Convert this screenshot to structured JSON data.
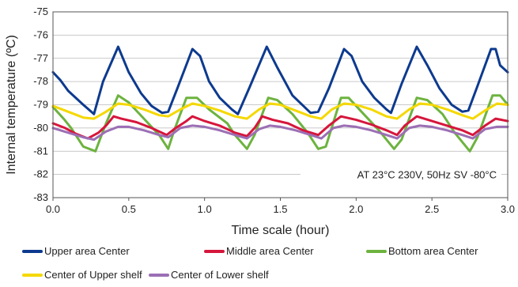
{
  "chart_data": {
    "type": "line",
    "title": "",
    "xlabel": "Time scale (hour)",
    "ylabel": "Internal temperature (ºC)",
    "xlim": [
      0,
      3
    ],
    "ylim": [
      -83,
      -75
    ],
    "xticks": [
      "0.0",
      "0.5",
      "1.0",
      "1.5",
      "2.0",
      "2.5",
      "3.0"
    ],
    "yticks": [
      "-75",
      "-76",
      "-77",
      "-78",
      "-79",
      "-80",
      "-81",
      "-82",
      "-83"
    ],
    "grid": true,
    "legend_position": "bottom",
    "annotation": "AT 23°C 230V, 50Hz  SV -80°C",
    "series": [
      {
        "name": "Upper area Center",
        "color": "#0d3a8f",
        "points": [
          [
            0,
            -77.6
          ],
          [
            0.05,
            -77.95
          ],
          [
            0.1,
            -78.4
          ],
          [
            0.2,
            -79.0
          ],
          [
            0.27,
            -79.4
          ],
          [
            0.33,
            -78.0
          ],
          [
            0.43,
            -76.5
          ],
          [
            0.5,
            -77.6
          ],
          [
            0.58,
            -78.5
          ],
          [
            0.65,
            -79.05
          ],
          [
            0.72,
            -79.35
          ],
          [
            0.76,
            -79.3
          ],
          [
            0.82,
            -78.3
          ],
          [
            0.92,
            -76.6
          ],
          [
            0.97,
            -76.9
          ],
          [
            1.03,
            -78.0
          ],
          [
            1.1,
            -78.7
          ],
          [
            1.18,
            -79.2
          ],
          [
            1.22,
            -79.4
          ],
          [
            1.3,
            -78.2
          ],
          [
            1.41,
            -76.5
          ],
          [
            1.48,
            -77.4
          ],
          [
            1.58,
            -78.6
          ],
          [
            1.7,
            -79.35
          ],
          [
            1.75,
            -79.3
          ],
          [
            1.82,
            -78.3
          ],
          [
            1.92,
            -76.6
          ],
          [
            1.97,
            -76.9
          ],
          [
            2.04,
            -78.0
          ],
          [
            2.12,
            -78.7
          ],
          [
            2.2,
            -79.2
          ],
          [
            2.23,
            -79.35
          ],
          [
            2.3,
            -78.1
          ],
          [
            2.4,
            -76.5
          ],
          [
            2.47,
            -77.3
          ],
          [
            2.55,
            -78.3
          ],
          [
            2.63,
            -79.0
          ],
          [
            2.7,
            -79.3
          ],
          [
            2.74,
            -79.25
          ],
          [
            2.8,
            -78.2
          ],
          [
            2.89,
            -76.6
          ],
          [
            2.92,
            -76.6
          ],
          [
            2.95,
            -77.3
          ],
          [
            3.0,
            -77.6
          ]
        ]
      },
      {
        "name": "Middle area Center",
        "color": "#d6163c",
        "points": [
          [
            0,
            -79.8
          ],
          [
            0.08,
            -80.0
          ],
          [
            0.15,
            -80.25
          ],
          [
            0.23,
            -80.45
          ],
          [
            0.3,
            -80.2
          ],
          [
            0.35,
            -79.9
          ],
          [
            0.4,
            -79.5
          ],
          [
            0.45,
            -79.6
          ],
          [
            0.55,
            -79.75
          ],
          [
            0.65,
            -80.0
          ],
          [
            0.75,
            -80.3
          ],
          [
            0.8,
            -80.05
          ],
          [
            0.88,
            -79.7
          ],
          [
            0.92,
            -79.5
          ],
          [
            1.0,
            -79.7
          ],
          [
            1.1,
            -79.9
          ],
          [
            1.2,
            -80.2
          ],
          [
            1.28,
            -80.35
          ],
          [
            1.33,
            -80.0
          ],
          [
            1.38,
            -79.5
          ],
          [
            1.45,
            -79.65
          ],
          [
            1.55,
            -79.8
          ],
          [
            1.65,
            -80.1
          ],
          [
            1.75,
            -80.3
          ],
          [
            1.82,
            -79.9
          ],
          [
            1.9,
            -79.5
          ],
          [
            2.0,
            -79.65
          ],
          [
            2.1,
            -79.85
          ],
          [
            2.2,
            -80.1
          ],
          [
            2.27,
            -80.3
          ],
          [
            2.32,
            -79.9
          ],
          [
            2.4,
            -79.5
          ],
          [
            2.5,
            -79.7
          ],
          [
            2.6,
            -79.9
          ],
          [
            2.7,
            -80.1
          ],
          [
            2.77,
            -80.3
          ],
          [
            2.85,
            -79.9
          ],
          [
            2.92,
            -79.6
          ],
          [
            3.0,
            -79.7
          ]
        ]
      },
      {
        "name": "Bottom area Center",
        "color": "#6db33f",
        "points": [
          [
            0,
            -79.1
          ],
          [
            0.07,
            -79.6
          ],
          [
            0.12,
            -80.0
          ],
          [
            0.2,
            -80.8
          ],
          [
            0.28,
            -81.0
          ],
          [
            0.35,
            -79.8
          ],
          [
            0.43,
            -78.6
          ],
          [
            0.5,
            -78.9
          ],
          [
            0.6,
            -79.6
          ],
          [
            0.7,
            -80.3
          ],
          [
            0.76,
            -80.9
          ],
          [
            0.8,
            -80.1
          ],
          [
            0.88,
            -78.7
          ],
          [
            0.95,
            -78.7
          ],
          [
            1.03,
            -79.2
          ],
          [
            1.15,
            -79.8
          ],
          [
            1.2,
            -80.3
          ],
          [
            1.28,
            -80.9
          ],
          [
            1.33,
            -80.3
          ],
          [
            1.42,
            -78.7
          ],
          [
            1.48,
            -78.8
          ],
          [
            1.58,
            -79.4
          ],
          [
            1.68,
            -80.2
          ],
          [
            1.75,
            -80.9
          ],
          [
            1.8,
            -80.8
          ],
          [
            1.9,
            -78.7
          ],
          [
            1.95,
            -78.7
          ],
          [
            2.05,
            -79.4
          ],
          [
            2.15,
            -80.1
          ],
          [
            2.25,
            -80.9
          ],
          [
            2.3,
            -80.5
          ],
          [
            2.4,
            -78.7
          ],
          [
            2.47,
            -78.8
          ],
          [
            2.57,
            -79.4
          ],
          [
            2.65,
            -80.2
          ],
          [
            2.75,
            -81.0
          ],
          [
            2.8,
            -80.4
          ],
          [
            2.9,
            -78.6
          ],
          [
            2.95,
            -78.6
          ],
          [
            3.0,
            -79.0
          ]
        ]
      },
      {
        "name": "Center of Upper shelf",
        "color": "#f5d800",
        "points": [
          [
            0,
            -79.05
          ],
          [
            0.1,
            -79.3
          ],
          [
            0.2,
            -79.55
          ],
          [
            0.27,
            -79.6
          ],
          [
            0.35,
            -79.3
          ],
          [
            0.43,
            -78.95
          ],
          [
            0.5,
            -79.0
          ],
          [
            0.6,
            -79.2
          ],
          [
            0.7,
            -79.45
          ],
          [
            0.76,
            -79.5
          ],
          [
            0.84,
            -79.2
          ],
          [
            0.92,
            -78.95
          ],
          [
            1.0,
            -79.05
          ],
          [
            1.1,
            -79.25
          ],
          [
            1.2,
            -79.5
          ],
          [
            1.28,
            -79.6
          ],
          [
            1.36,
            -79.2
          ],
          [
            1.43,
            -78.95
          ],
          [
            1.5,
            -79.0
          ],
          [
            1.6,
            -79.25
          ],
          [
            1.7,
            -79.5
          ],
          [
            1.77,
            -79.6
          ],
          [
            1.84,
            -79.2
          ],
          [
            1.92,
            -78.95
          ],
          [
            2.0,
            -79.0
          ],
          [
            2.1,
            -79.2
          ],
          [
            2.2,
            -79.5
          ],
          [
            2.27,
            -79.6
          ],
          [
            2.35,
            -79.2
          ],
          [
            2.42,
            -78.95
          ],
          [
            2.5,
            -79.0
          ],
          [
            2.6,
            -79.2
          ],
          [
            2.7,
            -79.45
          ],
          [
            2.77,
            -79.6
          ],
          [
            2.85,
            -79.25
          ],
          [
            2.93,
            -78.95
          ],
          [
            3.0,
            -79.0
          ]
        ]
      },
      {
        "name": "Center of Lower shelf",
        "color": "#9c6fb5",
        "points": [
          [
            0,
            -80.0
          ],
          [
            0.1,
            -80.2
          ],
          [
            0.2,
            -80.4
          ],
          [
            0.27,
            -80.5
          ],
          [
            0.35,
            -80.15
          ],
          [
            0.43,
            -79.95
          ],
          [
            0.5,
            -79.95
          ],
          [
            0.6,
            -80.1
          ],
          [
            0.7,
            -80.3
          ],
          [
            0.76,
            -80.4
          ],
          [
            0.84,
            -80.0
          ],
          [
            0.92,
            -79.9
          ],
          [
            1.0,
            -79.95
          ],
          [
            1.1,
            -80.1
          ],
          [
            1.2,
            -80.3
          ],
          [
            1.28,
            -80.45
          ],
          [
            1.36,
            -80.05
          ],
          [
            1.43,
            -79.9
          ],
          [
            1.5,
            -79.95
          ],
          [
            1.6,
            -80.1
          ],
          [
            1.7,
            -80.3
          ],
          [
            1.77,
            -80.45
          ],
          [
            1.85,
            -80.0
          ],
          [
            1.92,
            -79.9
          ],
          [
            2.0,
            -79.95
          ],
          [
            2.1,
            -80.1
          ],
          [
            2.2,
            -80.3
          ],
          [
            2.27,
            -80.45
          ],
          [
            2.35,
            -80.0
          ],
          [
            2.42,
            -79.9
          ],
          [
            2.5,
            -79.95
          ],
          [
            2.6,
            -80.1
          ],
          [
            2.7,
            -80.3
          ],
          [
            2.77,
            -80.45
          ],
          [
            2.85,
            -80.05
          ],
          [
            2.93,
            -79.95
          ],
          [
            3.0,
            -79.95
          ]
        ]
      }
    ]
  }
}
